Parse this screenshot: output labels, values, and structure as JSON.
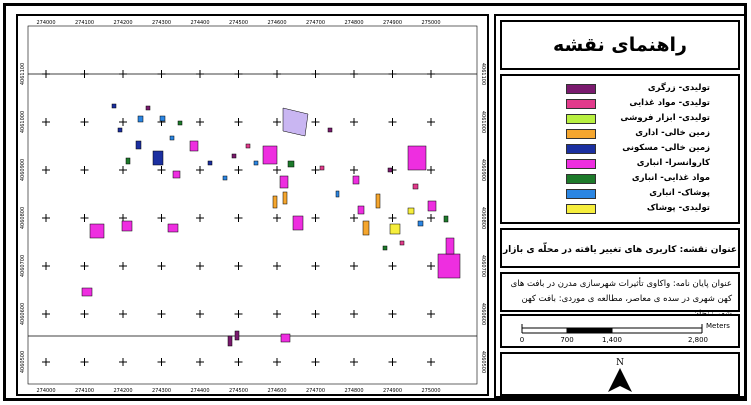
{
  "legend": {
    "title": "راهنمای نقشه",
    "items": [
      {
        "label": "تولیدی- زرگری",
        "color": "#7a1a6e"
      },
      {
        "label": "تولیدی- مواد غذایی",
        "color": "#e23b8c"
      },
      {
        "label": "تولیدی- ابزار فروشی",
        "color": "#b8f040"
      },
      {
        "label": "زمین خالی- اداری",
        "color": "#f5a62e"
      },
      {
        "label": "زمین خالی- مسکونی",
        "color": "#1b2fa0"
      },
      {
        "label": "کاروانسرا- انباری",
        "color": "#ee2ee0"
      },
      {
        "label": "مواد غذایی- انباری",
        "color": "#1d7a2a"
      },
      {
        "label": "پوشاک- انباری",
        "color": "#2b86e3"
      },
      {
        "label": "تولیدی- پوشاک",
        "color": "#f6ee3c"
      }
    ]
  },
  "map_title": "عنوان نقشه: کاربری های تغییر یافته در محلّه ی بازار زنجان",
  "thesis_title": "عنوان پایان نامه: واکاوی تأثیرات شهرسازی مدرن در بافت های کهن شهری در سده ی معاصر، مطالعه ی موردی: بافت کهن شهر زنجان",
  "scale_bar": {
    "labels": [
      "0",
      "700",
      "1,400",
      "2,800"
    ],
    "unit": "Meters"
  },
  "north_arrow": {
    "label": "N"
  },
  "grid": {
    "x_labels_top": [
      "274000",
      "274100",
      "274200",
      "274300",
      "274400",
      "274500",
      "274600",
      "274700",
      "274800",
      "274900",
      "275000"
    ],
    "x_labels_bottom": [
      "274000",
      "274100",
      "274200",
      "274300",
      "274400",
      "274500",
      "274600",
      "274700",
      "274800",
      "274900",
      "275000"
    ],
    "y_labels": [
      "4061100",
      "4061000",
      "4060900",
      "4060800",
      "4060700",
      "4060600",
      "4060500"
    ]
  }
}
